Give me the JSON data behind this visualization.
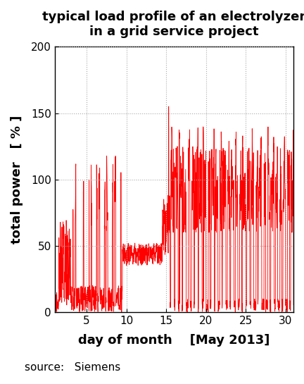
{
  "title": "typical load profile of an electrolyzer\nin a grid service project",
  "xlabel": "day of month    [May 2013]",
  "ylabel": "total power   [ % ]",
  "source_text": "source:   Siemens",
  "line_color": "#FF0000",
  "background_color": "#FFFFFF",
  "ylim": [
    0,
    200
  ],
  "xlim": [
    1,
    31
  ],
  "yticks": [
    0,
    50,
    100,
    150,
    200
  ],
  "xticks": [
    5,
    10,
    15,
    20,
    25,
    30
  ],
  "title_fontsize": 13,
  "label_fontsize": 13,
  "tick_fontsize": 11,
  "source_fontsize": 11
}
